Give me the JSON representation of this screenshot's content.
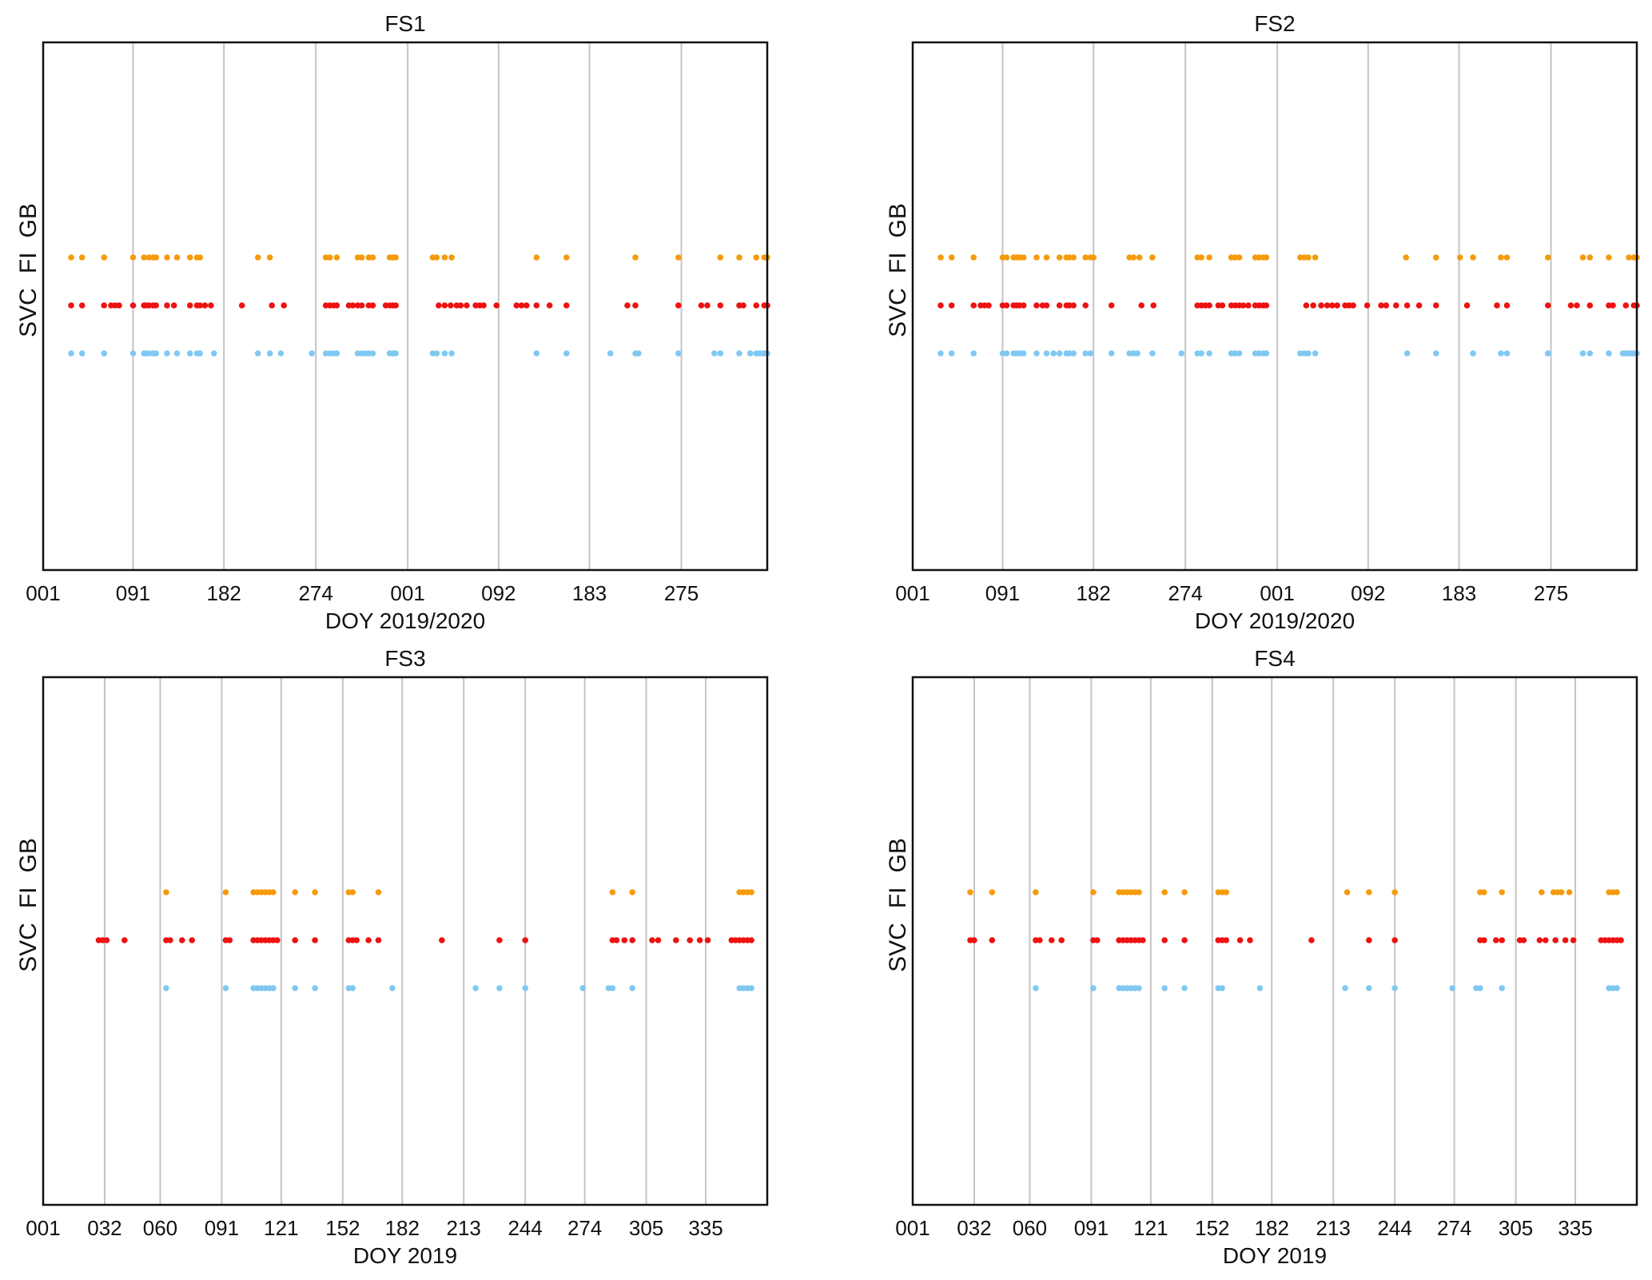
{
  "colors": {
    "SVC": "#7fc8f2",
    "FI": "#ee1111",
    "GB": "#f59b0b",
    "grid": "#c4c4c4",
    "frame": "#111111"
  },
  "chart_data": [
    {
      "type": "scatter",
      "title": "FS1",
      "xlabel": "DOY 2019/2020",
      "ylabel_words": [
        "SVC",
        "FI",
        "GB"
      ],
      "x_ticks": [
        {
          "label": "001",
          "day": 0
        },
        {
          "label": "091",
          "day": 90
        },
        {
          "label": "182",
          "day": 181
        },
        {
          "label": "274",
          "day": 273
        },
        {
          "label": "001",
          "day": 365
        },
        {
          "label": "092",
          "day": 456
        },
        {
          "label": "183",
          "day": 547
        },
        {
          "label": "275",
          "day": 639
        }
      ],
      "grid_days": [
        90,
        181,
        273,
        365,
        456,
        547,
        639
      ],
      "xlim": [
        0,
        725
      ],
      "grid": true,
      "series": [
        {
          "name": "GB",
          "days": [
            28,
            39,
            61,
            90,
            101,
            106,
            110,
            113,
            124,
            134,
            147,
            154,
            157,
            215,
            227,
            283,
            287,
            294,
            315,
            319,
            326,
            330,
            347,
            350,
            353,
            390,
            394,
            402,
            409,
            494,
            524,
            593,
            636,
            678,
            697,
            714,
            722,
            725
          ]
        },
        {
          "name": "FI",
          "days": [
            28,
            39,
            61,
            68,
            72,
            76,
            90,
            101,
            103,
            106,
            110,
            113,
            124,
            131,
            147,
            154,
            157,
            162,
            168,
            199,
            229,
            241,
            283,
            287,
            291,
            294,
            306,
            310,
            315,
            319,
            326,
            330,
            343,
            347,
            350,
            353,
            396,
            402,
            408,
            414,
            418,
            424,
            433,
            437,
            441,
            454,
            474,
            479,
            484,
            494,
            507,
            524,
            585,
            593,
            636,
            659,
            665,
            678,
            697,
            701,
            714,
            722,
            725
          ]
        },
        {
          "name": "SVC",
          "days": [
            28,
            39,
            61,
            90,
            101,
            103,
            106,
            110,
            113,
            124,
            134,
            147,
            154,
            157,
            171,
            215,
            227,
            238,
            269,
            283,
            287,
            291,
            294,
            315,
            319,
            323,
            326,
            330,
            347,
            350,
            353,
            390,
            394,
            402,
            409,
            494,
            524,
            568,
            593,
            596,
            636,
            672,
            678,
            697,
            708,
            714,
            717,
            720,
            722,
            725
          ]
        }
      ]
    },
    {
      "type": "scatter",
      "title": "FS2",
      "xlabel": "DOY 2019/2020",
      "ylabel_words": [
        "SVC",
        "FI",
        "GB"
      ],
      "x_ticks": [
        {
          "label": "001",
          "day": 0
        },
        {
          "label": "091",
          "day": 90
        },
        {
          "label": "182",
          "day": 181
        },
        {
          "label": "274",
          "day": 273
        },
        {
          "label": "001",
          "day": 365
        },
        {
          "label": "092",
          "day": 456
        },
        {
          "label": "183",
          "day": 547
        },
        {
          "label": "275",
          "day": 639
        }
      ],
      "grid_days": [
        90,
        181,
        273,
        365,
        456,
        547,
        639
      ],
      "xlim": [
        0,
        725
      ],
      "grid": true,
      "series": [
        {
          "name": "GB",
          "days": [
            28,
            39,
            61,
            90,
            94,
            101,
            104,
            107,
            111,
            124,
            134,
            147,
            154,
            157,
            161,
            173,
            178,
            181,
            217,
            221,
            227,
            240,
            285,
            289,
            297,
            319,
            323,
            327,
            343,
            347,
            351,
            354,
            388,
            392,
            396,
            403,
            494,
            524,
            548,
            561,
            589,
            595,
            636,
            671,
            678,
            697,
            717,
            722,
            725
          ]
        },
        {
          "name": "FI",
          "days": [
            28,
            39,
            61,
            68,
            72,
            76,
            90,
            94,
            101,
            104,
            107,
            111,
            124,
            130,
            134,
            147,
            154,
            157,
            161,
            173,
            199,
            229,
            241,
            285,
            289,
            293,
            297,
            306,
            310,
            319,
            323,
            327,
            331,
            336,
            343,
            347,
            351,
            354,
            394,
            401,
            409,
            415,
            420,
            425,
            433,
            437,
            441,
            455,
            469,
            474,
            484,
            495,
            507,
            524,
            555,
            585,
            595,
            636,
            659,
            665,
            678,
            697,
            701,
            714,
            722,
            725
          ]
        },
        {
          "name": "SVC",
          "days": [
            28,
            39,
            61,
            90,
            94,
            101,
            104,
            107,
            111,
            124,
            134,
            141,
            147,
            154,
            157,
            161,
            173,
            178,
            199,
            217,
            221,
            225,
            240,
            269,
            285,
            289,
            297,
            319,
            323,
            327,
            343,
            347,
            351,
            354,
            388,
            392,
            396,
            403,
            495,
            524,
            561,
            589,
            595,
            636,
            671,
            678,
            697,
            711,
            714,
            717,
            720,
            722,
            725
          ]
        }
      ]
    },
    {
      "type": "scatter",
      "title": "FS3",
      "xlabel": "DOY 2019",
      "ylabel_words": [
        "SVC",
        "FI",
        "GB"
      ],
      "x_ticks": [
        {
          "label": "001",
          "day": 0
        },
        {
          "label": "032",
          "day": 31
        },
        {
          "label": "060",
          "day": 59
        },
        {
          "label": "091",
          "day": 90
        },
        {
          "label": "121",
          "day": 120
        },
        {
          "label": "152",
          "day": 151
        },
        {
          "label": "182",
          "day": 181
        },
        {
          "label": "213",
          "day": 212
        },
        {
          "label": "244",
          "day": 243
        },
        {
          "label": "274",
          "day": 273
        },
        {
          "label": "305",
          "day": 304
        },
        {
          "label": "335",
          "day": 334
        }
      ],
      "grid_days": [
        31,
        59,
        90,
        120,
        151,
        181,
        212,
        243,
        273,
        304,
        334
      ],
      "xlim": [
        0,
        365
      ],
      "grid": true,
      "series": [
        {
          "name": "GB",
          "days": [
            62,
            92,
            106,
            108,
            110,
            112,
            114,
            116,
            127,
            137,
            154,
            156,
            169,
            287,
            297,
            351,
            353,
            355,
            357
          ]
        },
        {
          "name": "FI",
          "days": [
            28,
            30,
            32,
            41,
            62,
            64,
            70,
            75,
            92,
            94,
            106,
            108,
            110,
            112,
            114,
            116,
            118,
            127,
            137,
            154,
            156,
            158,
            164,
            169,
            201,
            230,
            243,
            287,
            289,
            293,
            297,
            307,
            310,
            319,
            326,
            331,
            335,
            347,
            349,
            351,
            353,
            355,
            357
          ]
        },
        {
          "name": "SVC",
          "days": [
            62,
            92,
            106,
            108,
            110,
            112,
            114,
            116,
            127,
            137,
            154,
            156,
            176,
            218,
            230,
            243,
            272,
            285,
            287,
            297,
            351,
            353,
            355,
            357
          ]
        }
      ]
    },
    {
      "type": "scatter",
      "title": "FS4",
      "xlabel": "DOY 2019",
      "ylabel_words": [
        "SVC",
        "FI",
        "GB"
      ],
      "x_ticks": [
        {
          "label": "001",
          "day": 0
        },
        {
          "label": "032",
          "day": 31
        },
        {
          "label": "060",
          "day": 59
        },
        {
          "label": "091",
          "day": 90
        },
        {
          "label": "121",
          "day": 120
        },
        {
          "label": "152",
          "day": 151
        },
        {
          "label": "182",
          "day": 181
        },
        {
          "label": "213",
          "day": 212
        },
        {
          "label": "244",
          "day": 243
        },
        {
          "label": "274",
          "day": 273
        },
        {
          "label": "305",
          "day": 304
        },
        {
          "label": "335",
          "day": 334
        }
      ],
      "grid_days": [
        31,
        59,
        90,
        120,
        151,
        181,
        212,
        243,
        273,
        304,
        334
      ],
      "xlim": [
        0,
        365
      ],
      "grid": true,
      "series": [
        {
          "name": "GB",
          "days": [
            29,
            40,
            62,
            91,
            104,
            106,
            108,
            110,
            112,
            114,
            127,
            137,
            154,
            156,
            158,
            219,
            230,
            243,
            286,
            288,
            297,
            317,
            323,
            325,
            327,
            331,
            351,
            353,
            355
          ]
        },
        {
          "name": "FI",
          "days": [
            29,
            31,
            40,
            62,
            64,
            70,
            75,
            91,
            93,
            104,
            106,
            108,
            110,
            112,
            114,
            116,
            127,
            137,
            154,
            156,
            158,
            165,
            170,
            201,
            230,
            243,
            286,
            288,
            294,
            297,
            306,
            308,
            316,
            319,
            324,
            329,
            333,
            347,
            349,
            351,
            353,
            355,
            357
          ]
        },
        {
          "name": "SVC",
          "days": [
            62,
            91,
            104,
            106,
            108,
            110,
            112,
            114,
            127,
            137,
            154,
            156,
            175,
            218,
            230,
            243,
            272,
            284,
            286,
            297,
            351,
            353,
            355
          ]
        }
      ]
    }
  ]
}
